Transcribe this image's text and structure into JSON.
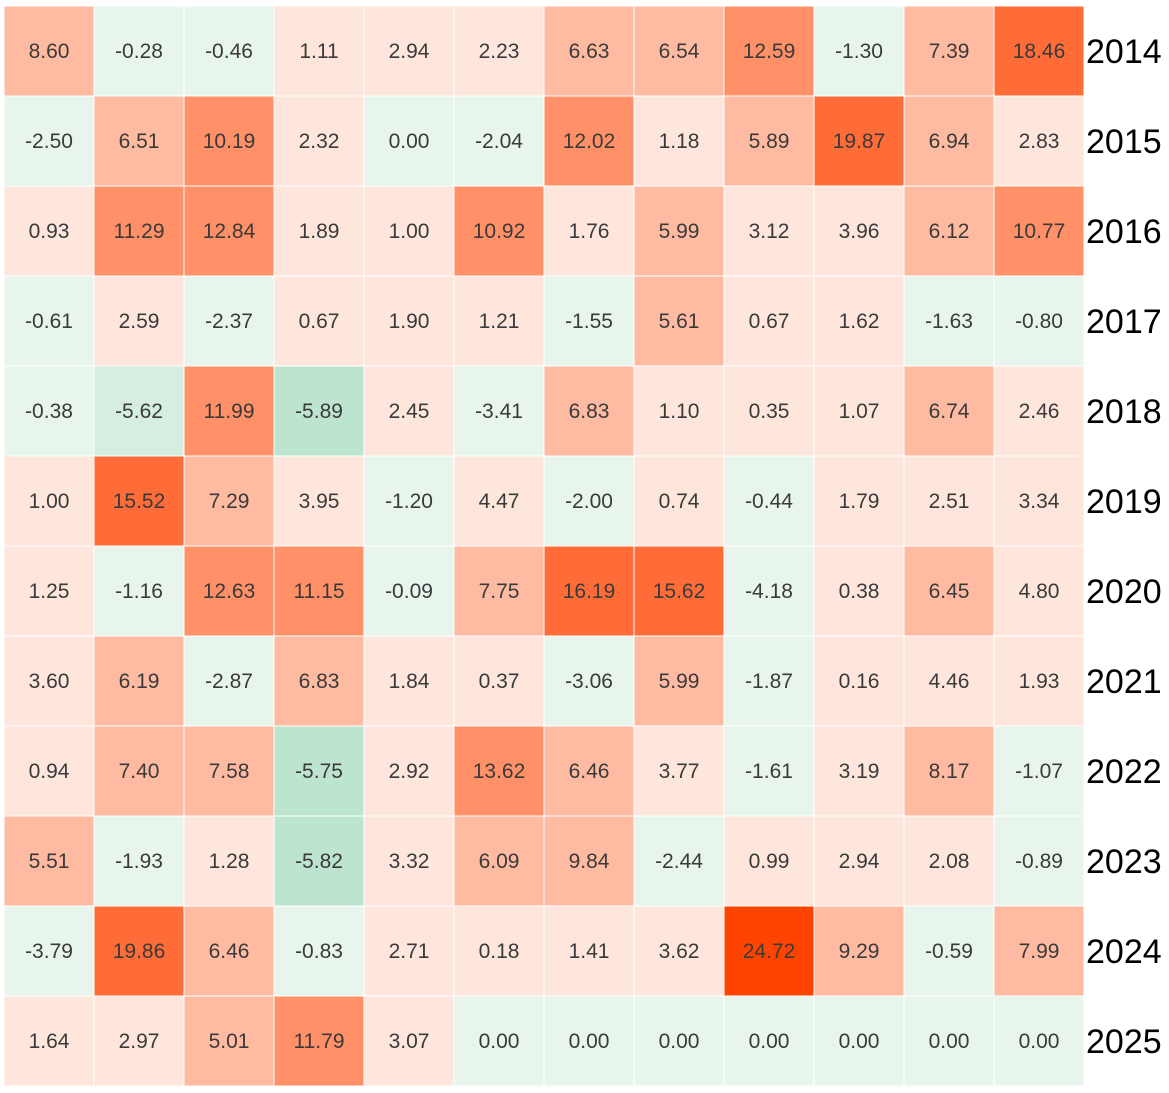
{
  "chart_data": {
    "type": "heatmap",
    "title": "",
    "xlabel": "",
    "ylabel": "",
    "rows": [
      "2014",
      "2015",
      "2016",
      "2017",
      "2018",
      "2019",
      "2020",
      "2021",
      "2022",
      "2023",
      "2024",
      "2025"
    ],
    "columns": [],
    "values": [
      [
        8.6,
        -0.28,
        -0.46,
        1.11,
        2.94,
        2.23,
        6.63,
        6.54,
        12.59,
        -1.3,
        7.39,
        18.46
      ],
      [
        -2.5,
        6.51,
        10.19,
        2.32,
        0.0,
        -2.04,
        12.02,
        1.18,
        5.89,
        19.87,
        6.94,
        2.83
      ],
      [
        0.93,
        11.29,
        12.84,
        1.89,
        1.0,
        10.92,
        1.76,
        5.99,
        3.12,
        3.96,
        6.12,
        10.77
      ],
      [
        -0.61,
        2.59,
        -2.37,
        0.67,
        1.9,
        1.21,
        -1.55,
        5.61,
        0.67,
        1.62,
        -1.63,
        -0.8
      ],
      [
        -0.38,
        -5.62,
        11.99,
        -5.89,
        2.45,
        -3.41,
        6.83,
        1.1,
        0.35,
        1.07,
        6.74,
        2.46
      ],
      [
        1.0,
        15.52,
        7.29,
        3.95,
        -1.2,
        4.47,
        -2.0,
        0.74,
        -0.44,
        1.79,
        2.51,
        3.34
      ],
      [
        1.25,
        -1.16,
        12.63,
        11.15,
        -0.09,
        7.75,
        16.19,
        15.62,
        -4.18,
        0.38,
        6.45,
        4.8
      ],
      [
        3.6,
        6.19,
        -2.87,
        6.83,
        1.84,
        0.37,
        -3.06,
        5.99,
        -1.87,
        0.16,
        4.46,
        1.93
      ],
      [
        0.94,
        7.4,
        7.58,
        -5.75,
        2.92,
        13.62,
        6.46,
        3.77,
        -1.61,
        3.19,
        8.17,
        -1.07
      ],
      [
        5.51,
        -1.93,
        1.28,
        -5.82,
        3.32,
        6.09,
        9.84,
        -2.44,
        0.99,
        2.94,
        2.08,
        -0.89
      ],
      [
        -3.79,
        19.86,
        6.46,
        -0.83,
        2.71,
        0.18,
        1.41,
        3.62,
        24.72,
        9.29,
        -0.59,
        7.99
      ],
      [
        1.64,
        2.97,
        5.01,
        11.79,
        3.07,
        0.0,
        0.0,
        0.0,
        0.0,
        0.0,
        0.0,
        0.0
      ]
    ],
    "value_labels": [
      [
        "8.60",
        "-0.28",
        "-0.46",
        "1.11",
        "2.94",
        "2.23",
        "6.63",
        "6.54",
        "12.59",
        "-1.30",
        "7.39",
        "18.46"
      ],
      [
        "-2.50",
        "6.51",
        "10.19",
        "2.32",
        "0.00",
        "-2.04",
        "12.02",
        "1.18",
        "5.89",
        "19.87",
        "6.94",
        "2.83"
      ],
      [
        "0.93",
        "11.29",
        "12.84",
        "1.89",
        "1.00",
        "10.92",
        "1.76",
        "5.99",
        "3.12",
        "3.96",
        "6.12",
        "10.77"
      ],
      [
        "-0.61",
        "2.59",
        "-2.37",
        "0.67",
        "1.90",
        "1.21",
        "-1.55",
        "5.61",
        "0.67",
        "1.62",
        "-1.63",
        "-0.80"
      ],
      [
        "-0.38",
        "-5.62",
        "11.99",
        "-5.89",
        "2.45",
        "-3.41",
        "6.83",
        "1.10",
        "0.35",
        "1.07",
        "6.74",
        "2.46"
      ],
      [
        "1.00",
        "15.52",
        "7.29",
        "3.95",
        "-1.20",
        "4.47",
        "-2.00",
        "0.74",
        "-0.44",
        "1.79",
        "2.51",
        "3.34"
      ],
      [
        "1.25",
        "-1.16",
        "12.63",
        "11.15",
        "-0.09",
        "7.75",
        "16.19",
        "15.62",
        "-4.18",
        "0.38",
        "6.45",
        "4.80"
      ],
      [
        "3.60",
        "6.19",
        "-2.87",
        "6.83",
        "1.84",
        "0.37",
        "-3.06",
        "5.99",
        "-1.87",
        "0.16",
        "4.46",
        "1.93"
      ],
      [
        "0.94",
        "7.40",
        "7.58",
        "-5.75",
        "2.92",
        "13.62",
        "6.46",
        "3.77",
        "-1.61",
        "3.19",
        "8.17",
        "-1.07"
      ],
      [
        "5.51",
        "-1.93",
        "1.28",
        "-5.82",
        "3.32",
        "6.09",
        "9.84",
        "-2.44",
        "0.99",
        "2.94",
        "2.08",
        "-0.89"
      ],
      [
        "-3.79",
        "19.86",
        "6.46",
        "-0.83",
        "2.71",
        "0.18",
        "1.41",
        "3.62",
        "24.72",
        "9.29",
        "-0.59",
        "7.99"
      ],
      [
        "1.64",
        "2.97",
        "5.01",
        "11.79",
        "3.07",
        "0.00",
        "0.00",
        "0.00",
        "0.00",
        "0.00",
        "0.00",
        "0.00"
      ]
    ],
    "row_label_position": "right",
    "grid": false,
    "legend": "none",
    "colors": {
      "zero": "#e8f5ed",
      "near_zero_positive": "#fee6dc",
      "low_positive": "#ffbba1",
      "mid_positive": "#ff9067",
      "high_positive": "#ff6c37",
      "max_positive": "#ff4400",
      "mid_negative": "#d6eee0",
      "max_negative": "#bde4cf",
      "cell_border": "#ffffff",
      "value_text": "#3a3a3a",
      "row_label_text": "#000000"
    }
  }
}
